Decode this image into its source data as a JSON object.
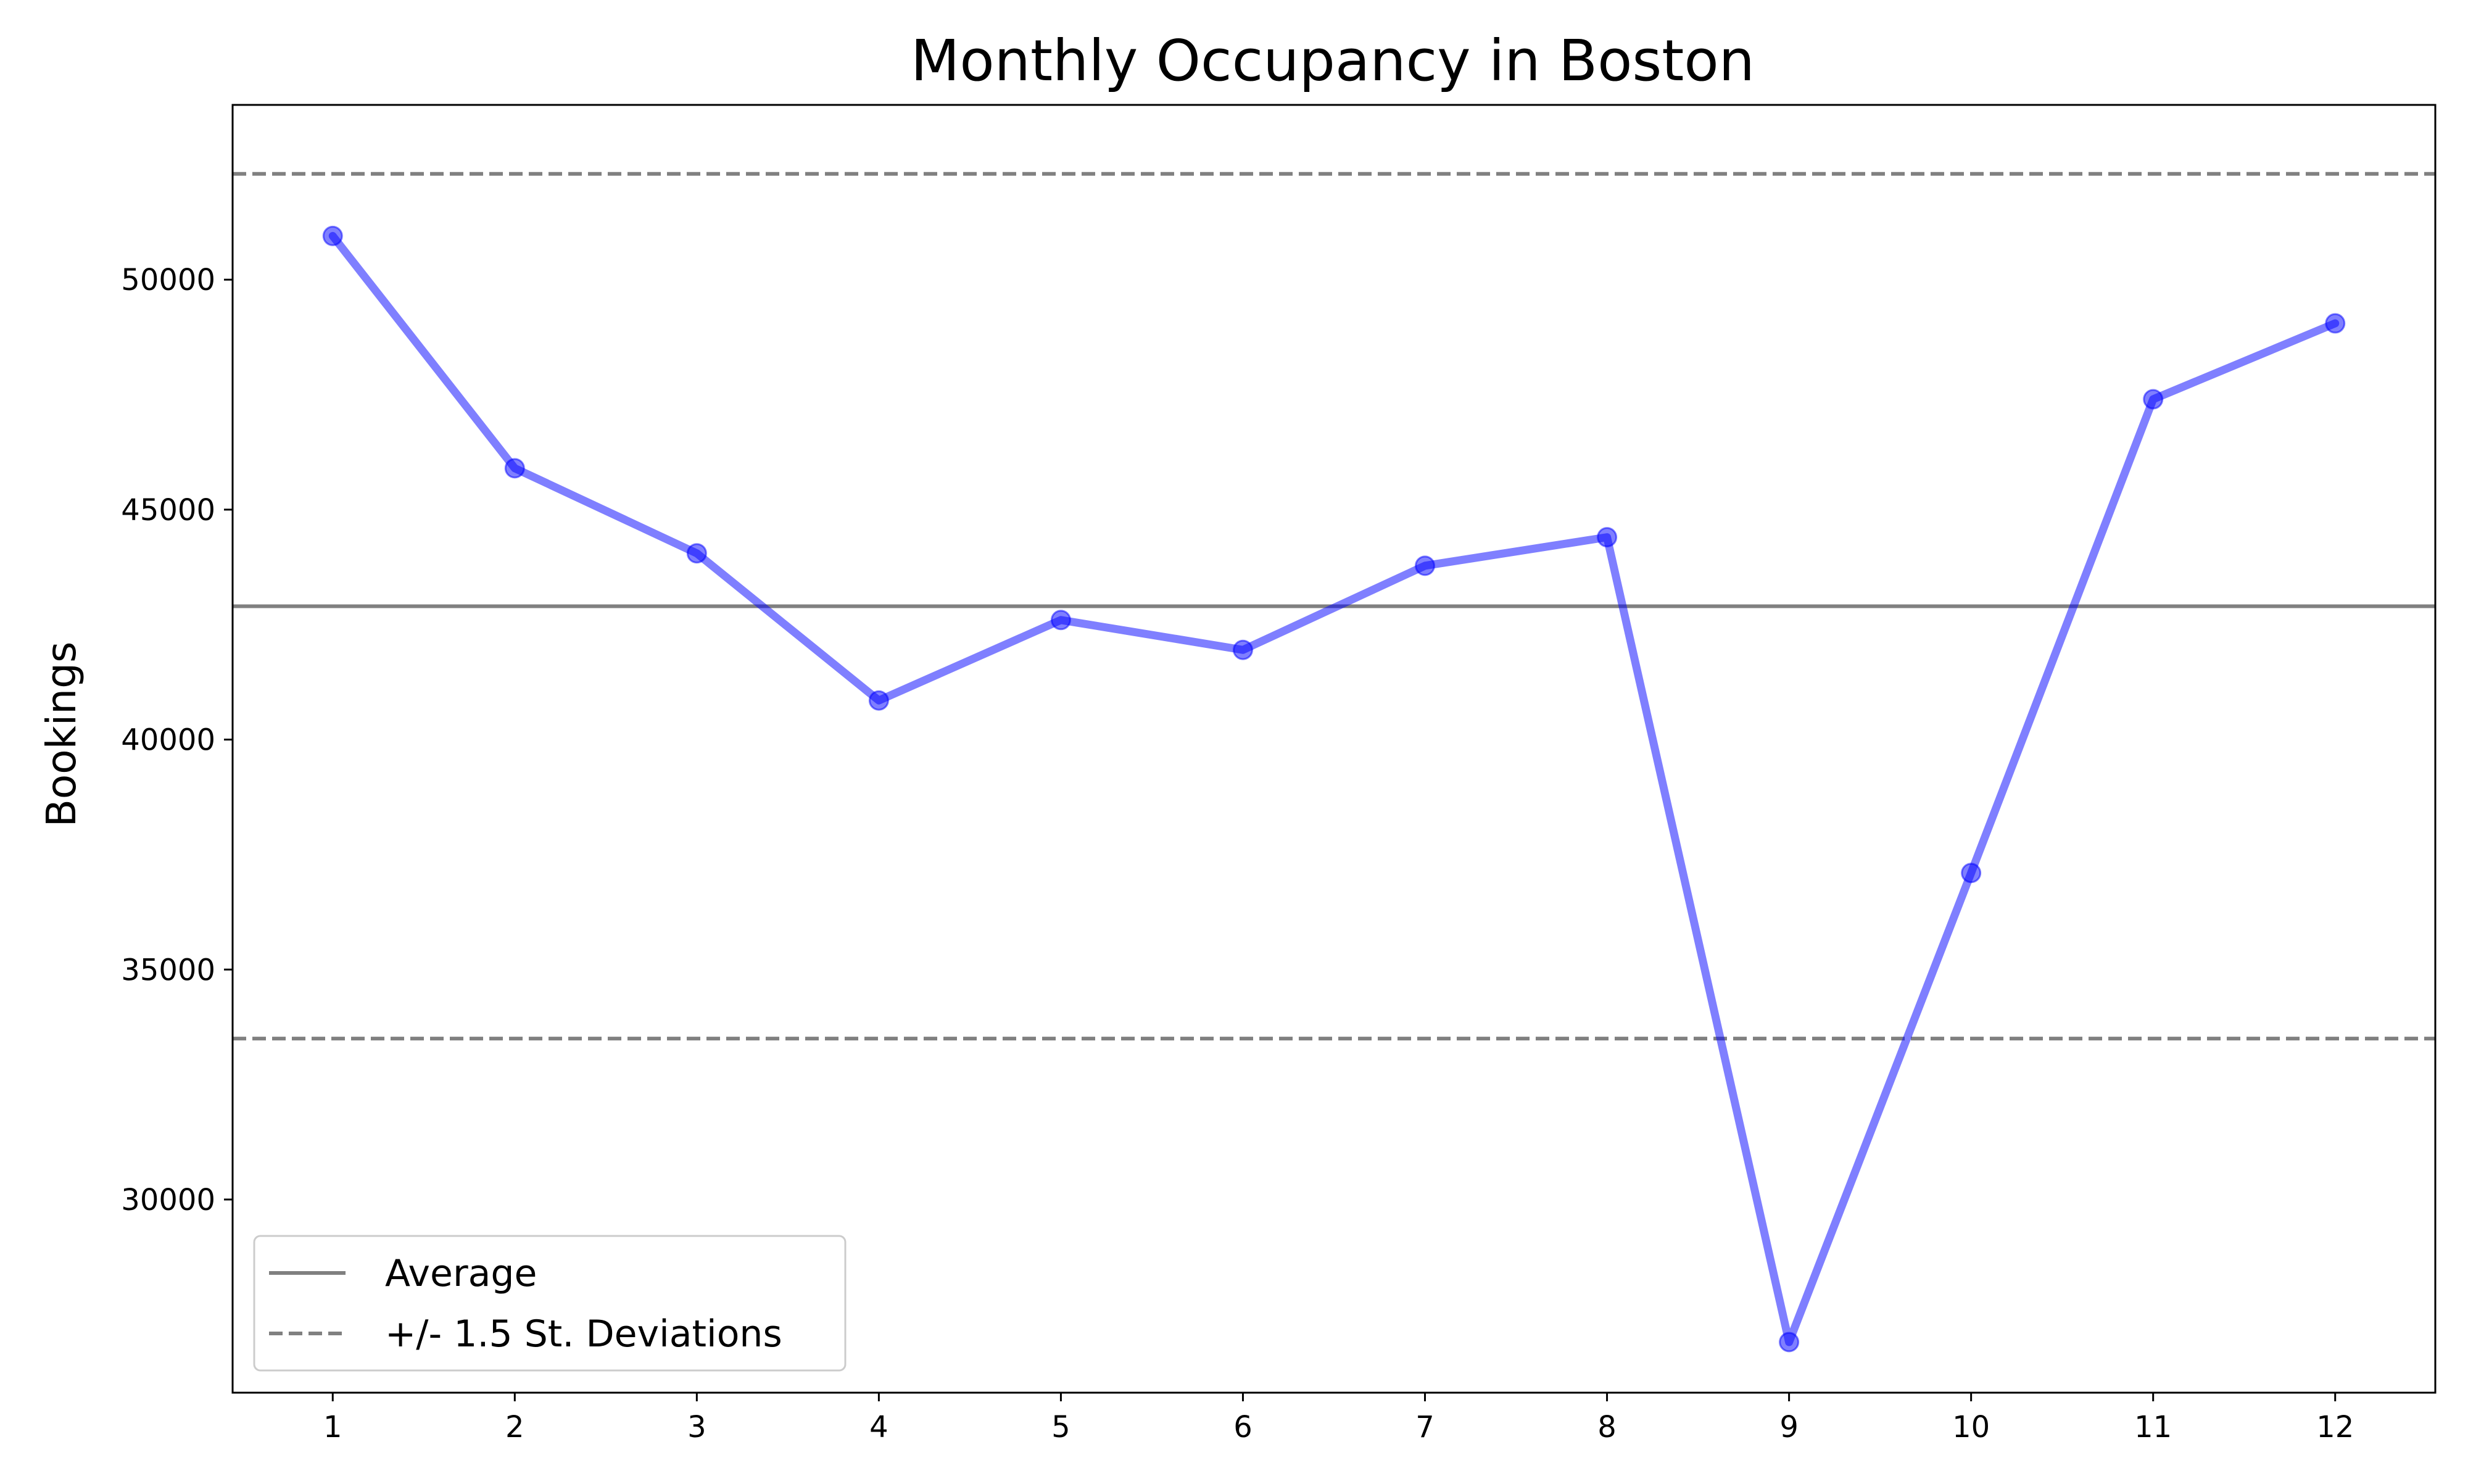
{
  "chart_data": {
    "type": "line",
    "title": "Monthly Occupancy in Boston",
    "xlabel": "",
    "ylabel": "Bookings",
    "x": [
      1,
      2,
      3,
      4,
      5,
      6,
      7,
      8,
      9,
      10,
      11,
      12
    ],
    "xticks": [
      "1",
      "2",
      "3",
      "4",
      "5",
      "6",
      "7",
      "8",
      "9",
      "10",
      "11",
      "12"
    ],
    "xlim": [
      0.45,
      12.55
    ],
    "ylim": [
      25800,
      53800
    ],
    "yticks": [
      30000,
      35000,
      40000,
      45000,
      50000
    ],
    "ytick_labels": [
      "30000",
      "35000",
      "40000",
      "45000",
      "50000"
    ],
    "series": [
      {
        "values": [
          50950,
          45900,
          44050,
          40850,
          42600,
          41950,
          43780,
          44400,
          26900,
          37100,
          47400,
          49050
        ],
        "color": "#0000ff"
      }
    ],
    "reference_lines": {
      "average": 42900,
      "upper_band": 52300,
      "lower_band": 33500,
      "color": "#808080"
    },
    "legend": {
      "placement": "lower-left",
      "entries": [
        {
          "label": "Average",
          "style": "solid"
        },
        {
          "label": "+/- 1.5 St. Deviations",
          "style": "dashed"
        }
      ]
    },
    "grid": false
  }
}
